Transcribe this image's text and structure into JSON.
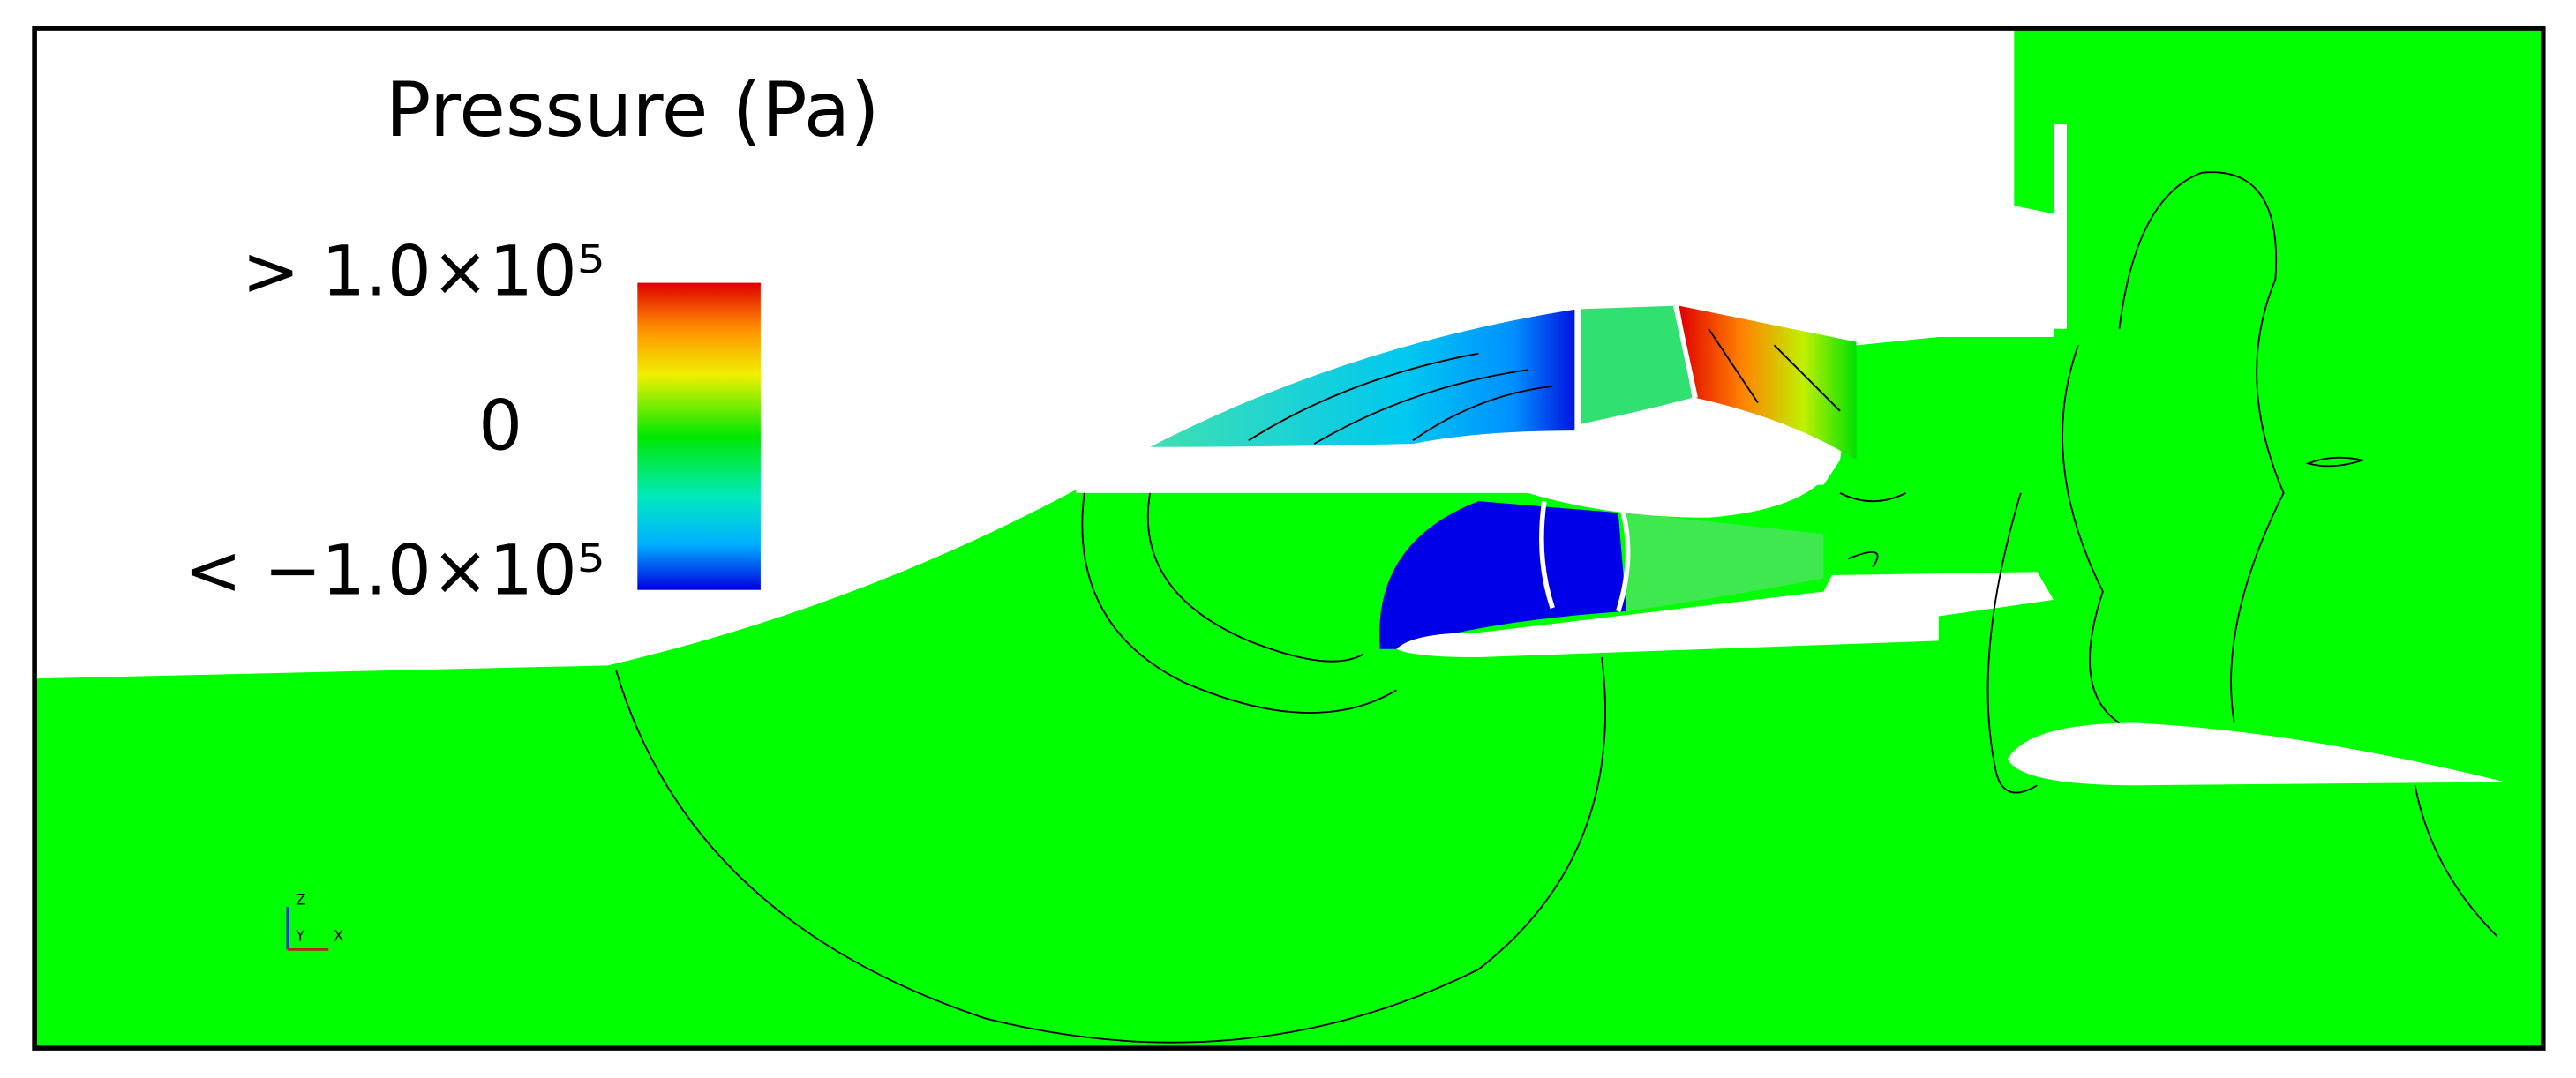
{
  "legend": {
    "title": "Pressure (Pa)",
    "labels": [
      "> 1.0×10⁵",
      "0",
      "< −1.0×10⁵"
    ]
  },
  "axes_triad": {
    "labels": [
      "Z",
      "Y",
      "X"
    ]
  }
}
